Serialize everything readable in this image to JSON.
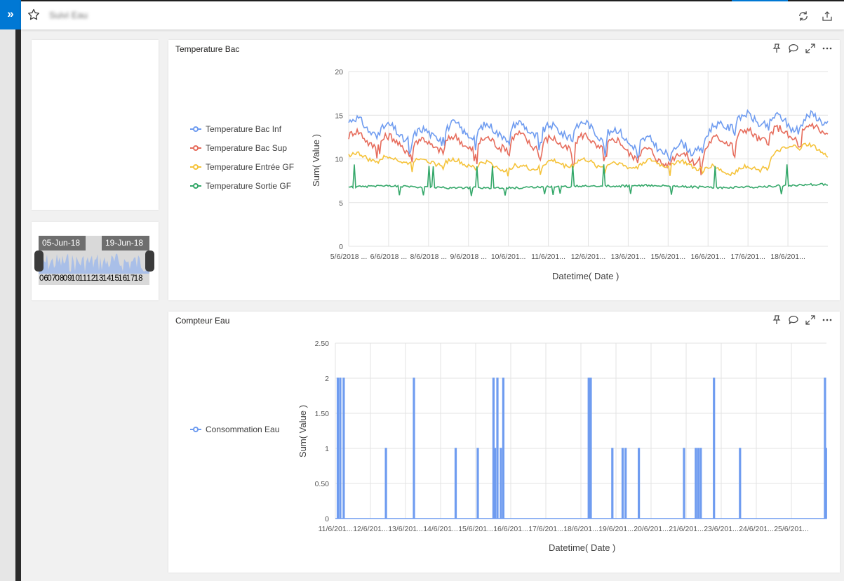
{
  "app": {
    "expand_glyph": "»",
    "page_title": "Suivi Eau",
    "icons": [
      "star-icon",
      "refresh-icon",
      "share-icon"
    ]
  },
  "slicer": {
    "start_label": "05-Jun-18",
    "end_label": "19-Jun-18",
    "axis_labels": [
      "06",
      "07",
      "08",
      "09",
      "10",
      "11",
      "12",
      "13",
      "14",
      "15",
      "16",
      "17",
      "18"
    ]
  },
  "tiles": {
    "temperature": {
      "title": "Temperature Bac",
      "header_icons": [
        "pin-icon",
        "comment-icon",
        "expand-icon",
        "more-options-icon"
      ]
    },
    "compteur": {
      "title": "Compteur Eau",
      "header_icons": [
        "pin-icon",
        "comment-icon",
        "expand-icon",
        "more-options-icon"
      ]
    }
  },
  "chart_data": [
    {
      "type": "line",
      "title": "Temperature Bac",
      "xlabel": "Datetime( Date )",
      "ylabel": "Sum( Value )",
      "ylim": [
        0,
        20
      ],
      "yticks": [
        "0",
        "5",
        "10",
        "15",
        "20"
      ],
      "xtick_labels": [
        "5/6/2018 ...",
        "6/6/2018 ...",
        "8/6/2018 ...",
        "9/6/2018 ...",
        "10/6/201...",
        "11/6/201...",
        "12/6/201...",
        "13/6/201...",
        "15/6/201...",
        "16/6/201...",
        "17/6/201...",
        "18/6/201..."
      ],
      "grid": true,
      "legend_position": "left",
      "x": [
        "5/6/2018",
        "6/6/2018",
        "7/6/2018",
        "8/6/2018",
        "9/6/2018",
        "10/6/2018",
        "11/6/2018",
        "12/6/2018",
        "13/6/2018",
        "14/6/2018",
        "15/6/2018",
        "16/6/2018",
        "17/6/2018",
        "18/6/2018",
        "19/6/2018"
      ],
      "series": [
        {
          "name": "Temperature Bac Inf",
          "color": "#6f9cf0",
          "values": [
            14.2,
            13.3,
            12.6,
            13.4,
            13.2,
            13.5,
            13.1,
            13.6,
            12.5,
            11.4,
            11.0,
            14.2,
            14.6,
            14.0,
            14.8
          ]
        },
        {
          "name": "Temperature Bac Sup",
          "color": "#e66c5c",
          "values": [
            12.6,
            12.0,
            11.6,
            11.9,
            11.7,
            12.2,
            11.7,
            12.1,
            11.4,
            10.1,
            10.0,
            12.5,
            12.8,
            12.9,
            13.6
          ]
        },
        {
          "name": "Temperature Entrée GF",
          "color": "#f5c33b",
          "values": [
            10.4,
            10.0,
            9.8,
            9.6,
            9.3,
            8.9,
            9.5,
            9.6,
            9.2,
            9.6,
            9.3,
            8.6,
            9.0,
            11.8,
            10.7
          ]
        },
        {
          "name": "Temperature Sortie GF",
          "color": "#35a86a",
          "values": [
            6.8,
            6.9,
            6.8,
            6.7,
            6.7,
            6.7,
            6.8,
            6.9,
            6.9,
            7.0,
            6.8,
            6.7,
            6.8,
            7.0,
            7.1
          ]
        }
      ]
    },
    {
      "type": "line",
      "title": "Compteur Eau",
      "xlabel": "Datetime( Date )",
      "ylabel": "Sum( Value )",
      "ylim": [
        0,
        2.5
      ],
      "yticks": [
        "0",
        "0.50",
        "1",
        "1.50",
        "2",
        "2.50"
      ],
      "xtick_labels": [
        "11/6/201...",
        "12/6/201...",
        "13/6/201...",
        "14/6/201...",
        "15/6/201...",
        "16/6/201...",
        "17/6/201...",
        "18/6/201...",
        "19/6/201...",
        "20/6/201...",
        "21/6/201...",
        "23/6/201...",
        "24/6/201...",
        "25/6/201..."
      ],
      "grid": true,
      "legend_position": "left",
      "series": [
        {
          "name": "Consommation Eau",
          "color": "#6f9cf0",
          "spikes": [
            [
              0.005,
              2
            ],
            [
              0.01,
              2
            ],
            [
              0.017,
              2
            ],
            [
              0.103,
              1
            ],
            [
              0.16,
              2
            ],
            [
              0.245,
              1
            ],
            [
              0.29,
              1
            ],
            [
              0.322,
              2
            ],
            [
              0.325,
              1
            ],
            [
              0.33,
              2
            ],
            [
              0.337,
              1
            ],
            [
              0.342,
              2
            ],
            [
              0.516,
              2
            ],
            [
              0.52,
              2
            ],
            [
              0.564,
              1
            ],
            [
              0.585,
              1
            ],
            [
              0.591,
              1
            ],
            [
              0.618,
              1
            ],
            [
              0.71,
              1
            ],
            [
              0.734,
              1
            ],
            [
              0.739,
              1
            ],
            [
              0.744,
              1
            ],
            [
              0.771,
              2
            ],
            [
              0.824,
              1
            ],
            [
              0.997,
              2
            ],
            [
              0.999,
              1
            ]
          ]
        }
      ]
    }
  ]
}
